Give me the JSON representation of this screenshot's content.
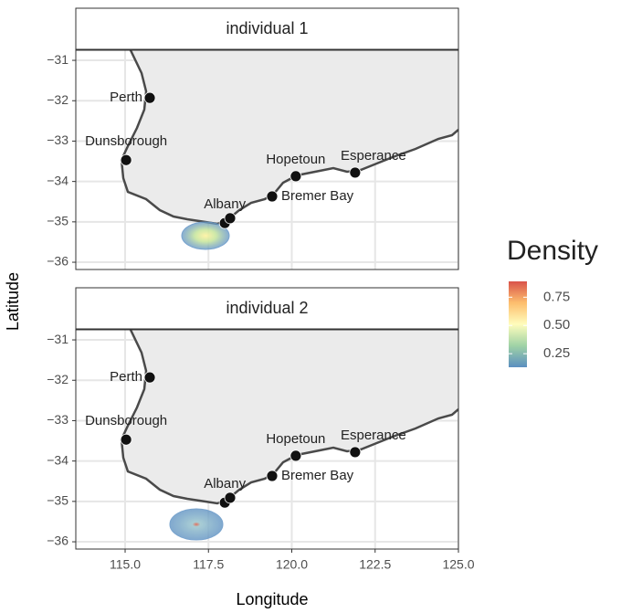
{
  "chart_data": {
    "type": "map",
    "x_label": "Longitude",
    "y_label": "Latitude",
    "facets": [
      {
        "title": "individual 1"
      },
      {
        "title": "individual 2"
      }
    ],
    "xlim": [
      113.52,
      125
    ],
    "xticks": [
      {
        "value": 115,
        "label": "115.0"
      },
      {
        "value": 117.5,
        "label": "117.5"
      },
      {
        "value": 120,
        "label": "120.0"
      },
      {
        "value": 122.5,
        "label": "122.5"
      },
      {
        "value": 125,
        "label": "125.0"
      }
    ],
    "ylim": [
      -36.18,
      -30.75
    ],
    "yticks": [
      {
        "value": -31,
        "label": "−31"
      },
      {
        "value": -32,
        "label": "−32"
      },
      {
        "value": -33,
        "label": "−33"
      },
      {
        "value": -34,
        "label": "−34"
      },
      {
        "value": -35,
        "label": "−35"
      },
      {
        "value": -36,
        "label": "−36"
      }
    ],
    "grid": true,
    "points": {
      "names": [
        "Perth",
        "Dunsborough",
        "Hopetoun",
        "Esperance",
        "Bremer Bay",
        "Albany",
        null
      ],
      "lon": [
        115.74,
        115.03,
        120.12,
        121.9,
        119.41,
        117.99,
        118.15
      ],
      "lat": [
        -31.93,
        -33.47,
        -33.87,
        -33.78,
        -34.37,
        -35.03,
        -34.91
      ],
      "color": "#111111"
    },
    "legend": {
      "title": "Density",
      "lim": [
        0.13,
        0.89
      ],
      "ticks": [
        0.25,
        {
          "value": 0.5,
          "label": "0.50"
        },
        0.75
      ],
      "colors": [
        "#5b8fc0",
        "#9fd2a6",
        "#fffdbc",
        "#fdbe6e",
        "#d9534a"
      ]
    }
  }
}
